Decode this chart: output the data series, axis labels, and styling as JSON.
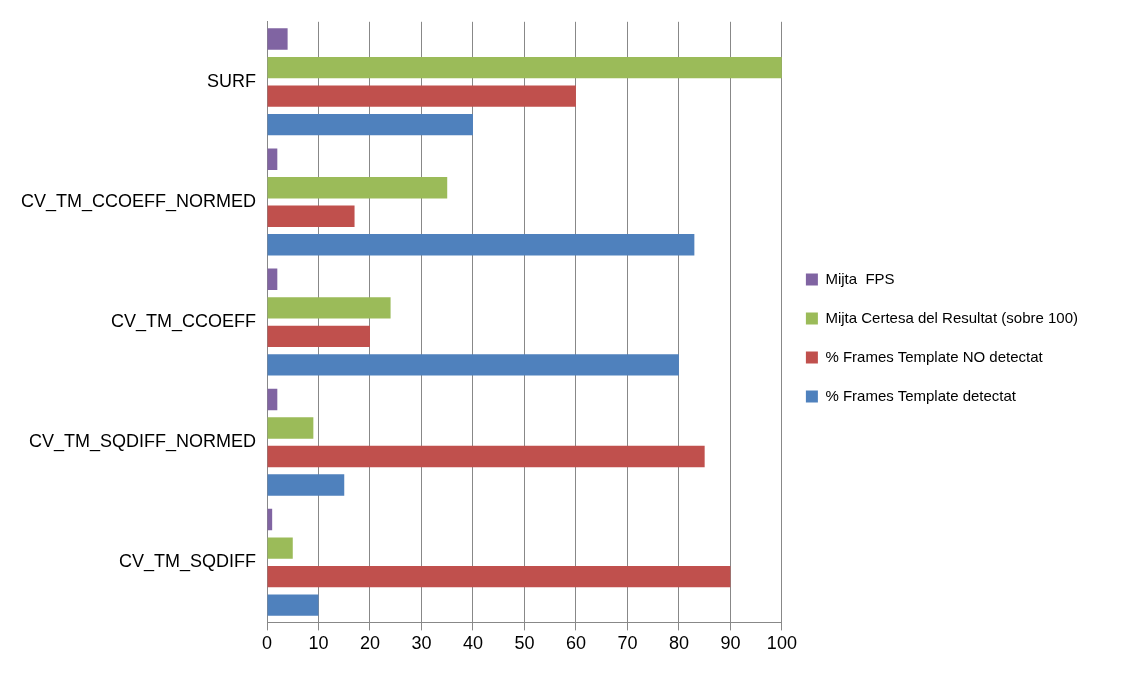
{
  "chart_data": {
    "type": "bar",
    "orientation": "horizontal",
    "categories": [
      "SURF",
      "CV_TM_CCOEFF_NORMED",
      "CV_TM_CCOEFF",
      "CV_TM_SQDIFF_NORMED",
      "CV_TM_SQDIFF"
    ],
    "series": [
      {
        "name": "Mijta  FPS",
        "color": "#8064a2",
        "values": [
          4,
          2,
          2,
          2,
          1
        ]
      },
      {
        "name": "Mijta Certesa del Resultat (sobre 100)",
        "color": "#9bbb59",
        "values": [
          100,
          35,
          24,
          9,
          5
        ]
      },
      {
        "name": "% Frames Template NO detectat",
        "color": "#c0504d",
        "values": [
          60,
          17,
          20,
          85,
          90
        ]
      },
      {
        "name": "% Frames Template detectat",
        "color": "#4f81bd",
        "values": [
          40,
          83,
          80,
          15,
          10
        ]
      }
    ],
    "xlim": [
      0,
      100
    ],
    "xticks": [
      0,
      10,
      20,
      30,
      40,
      50,
      60,
      70,
      80,
      90,
      100
    ],
    "grid": "x",
    "legend": "right"
  }
}
